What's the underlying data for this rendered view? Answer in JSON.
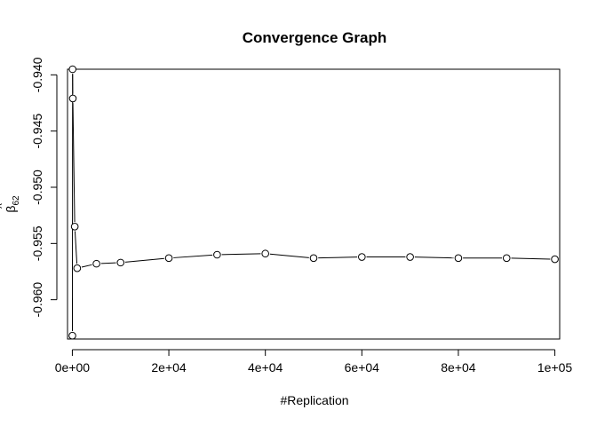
{
  "chart_data": {
    "type": "line",
    "title": "Convergence Graph",
    "xlabel": "#Replication",
    "ylabel": "β62",
    "ylabel_base": "β",
    "ylabel_sub": "62",
    "xlim": [
      -1000,
      101000
    ],
    "ylim": [
      -0.9635,
      -0.9395
    ],
    "x_ticks": [
      0,
      20000,
      40000,
      60000,
      80000,
      100000
    ],
    "x_tick_labels": [
      "0e+00",
      "2e+04",
      "4e+04",
      "6e+04",
      "8e+04",
      "1e+05"
    ],
    "y_ticks": [
      -0.96,
      -0.955,
      -0.95,
      -0.945,
      -0.94
    ],
    "y_tick_labels": [
      "-0.960",
      "-0.955",
      "-0.950",
      "-0.945",
      "-0.940"
    ],
    "series": [
      {
        "marker": "open-circle",
        "x": [
          10,
          50,
          100,
          500,
          1000,
          5000,
          10000,
          20000,
          30000,
          40000,
          50000,
          60000,
          70000,
          80000,
          90000,
          100000
        ],
        "y": [
          -0.9632,
          -0.9395,
          -0.9421,
          -0.9535,
          -0.9572,
          -0.9568,
          -0.9567,
          -0.9563,
          -0.956,
          -0.9559,
          -0.9563,
          -0.9562,
          -0.9562,
          -0.9563,
          -0.9563,
          -0.9564
        ]
      }
    ]
  }
}
